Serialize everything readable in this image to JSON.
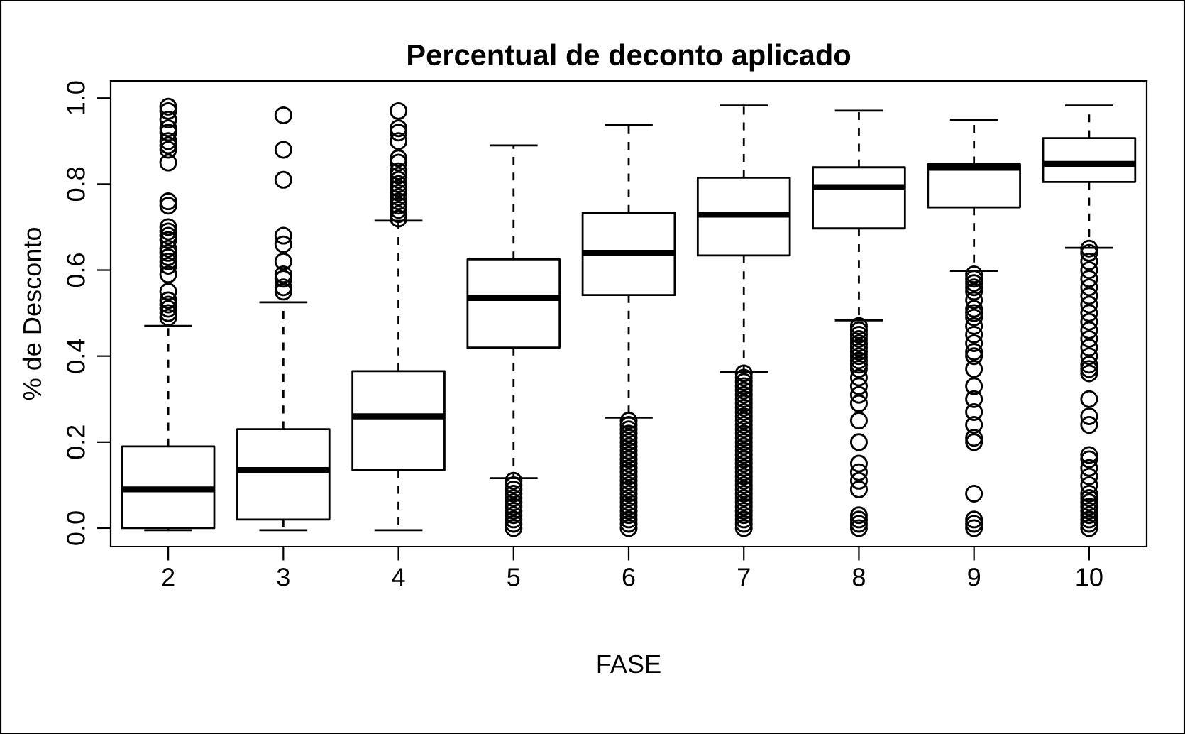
{
  "chart_data": {
    "type": "box",
    "title": "Percentual de deconto aplicado",
    "xlabel": "FASE",
    "ylabel": "% de Desconto",
    "categories": [
      "2",
      "3",
      "4",
      "5",
      "6",
      "7",
      "8",
      "9",
      "10"
    ],
    "ylim": [
      -0.043,
      1.04
    ],
    "yticks": [
      {
        "value": 0,
        "label": "0.0"
      },
      {
        "value": 0.2,
        "label": "0.2"
      },
      {
        "value": 0.4,
        "label": "0.4"
      },
      {
        "value": 0.6,
        "label": "0.6"
      },
      {
        "value": 0.8,
        "label": "0.8"
      },
      {
        "value": 1.0,
        "label": "1.0"
      }
    ],
    "grid": false,
    "legend": false,
    "boxes": [
      {
        "low": -0.005,
        "q1": 0.0,
        "median": 0.09,
        "q3": 0.19,
        "high": 0.47,
        "outliers": [
          0.49,
          0.5,
          0.51,
          0.52,
          0.53,
          0.55,
          0.59,
          0.61,
          0.62,
          0.63,
          0.64,
          0.65,
          0.67,
          0.68,
          0.69,
          0.7,
          0.75,
          0.76,
          0.85,
          0.88,
          0.89,
          0.9,
          0.92,
          0.93,
          0.95,
          0.97,
          0.98
        ]
      },
      {
        "low": -0.005,
        "q1": 0.02,
        "median": 0.135,
        "q3": 0.23,
        "high": 0.525,
        "outliers": [
          0.55,
          0.56,
          0.58,
          0.59,
          0.62,
          0.66,
          0.68,
          0.81,
          0.88,
          0.96
        ]
      },
      {
        "low": -0.005,
        "q1": 0.135,
        "median": 0.26,
        "q3": 0.365,
        "high": 0.715,
        "outliers": [
          0.72,
          0.73,
          0.74,
          0.75,
          0.76,
          0.77,
          0.78,
          0.79,
          0.8,
          0.81,
          0.82,
          0.83,
          0.85,
          0.86,
          0.9,
          0.92,
          0.93,
          0.97
        ]
      },
      {
        "low": 0.116,
        "q1": 0.42,
        "median": 0.535,
        "q3": 0.625,
        "high": 0.89,
        "outliers": [
          0.0,
          0.01,
          0.02,
          0.03,
          0.04,
          0.05,
          0.06,
          0.07,
          0.08,
          0.09,
          0.1,
          0.11
        ]
      },
      {
        "low": 0.257,
        "q1": 0.542,
        "median": 0.64,
        "q3": 0.733,
        "high": 0.938,
        "outliers": [
          0.0,
          0.01,
          0.02,
          0.03,
          0.04,
          0.05,
          0.06,
          0.07,
          0.08,
          0.09,
          0.1,
          0.11,
          0.12,
          0.13,
          0.14,
          0.15,
          0.16,
          0.17,
          0.18,
          0.19,
          0.2,
          0.21,
          0.22,
          0.23,
          0.24,
          0.25
        ]
      },
      {
        "low": 0.363,
        "q1": 0.634,
        "median": 0.729,
        "q3": 0.815,
        "high": 0.983,
        "outliers": [
          0.0,
          0.01,
          0.02,
          0.03,
          0.04,
          0.05,
          0.06,
          0.07,
          0.08,
          0.09,
          0.1,
          0.11,
          0.12,
          0.13,
          0.14,
          0.15,
          0.16,
          0.17,
          0.18,
          0.19,
          0.2,
          0.21,
          0.22,
          0.23,
          0.24,
          0.25,
          0.26,
          0.27,
          0.28,
          0.29,
          0.3,
          0.31,
          0.32,
          0.33,
          0.34,
          0.35,
          0.36
        ]
      },
      {
        "low": 0.483,
        "q1": 0.697,
        "median": 0.793,
        "q3": 0.839,
        "high": 0.971,
        "outliers": [
          0.0,
          0.01,
          0.02,
          0.03,
          0.09,
          0.11,
          0.13,
          0.15,
          0.2,
          0.25,
          0.29,
          0.31,
          0.33,
          0.35,
          0.37,
          0.38,
          0.39,
          0.4,
          0.41,
          0.42,
          0.43,
          0.44,
          0.45,
          0.46,
          0.47
        ]
      },
      {
        "low": 0.598,
        "q1": 0.746,
        "median": 0.838,
        "q3": 0.846,
        "high": 0.95,
        "outliers": [
          0.0,
          0.01,
          0.02,
          0.08,
          0.2,
          0.21,
          0.24,
          0.27,
          0.3,
          0.33,
          0.37,
          0.4,
          0.41,
          0.43,
          0.45,
          0.47,
          0.49,
          0.5,
          0.51,
          0.53,
          0.55,
          0.56,
          0.57,
          0.58,
          0.59
        ]
      },
      {
        "low": 0.652,
        "q1": 0.805,
        "median": 0.847,
        "q3": 0.907,
        "high": 0.983,
        "outliers": [
          0.0,
          0.01,
          0.02,
          0.03,
          0.04,
          0.05,
          0.06,
          0.07,
          0.08,
          0.1,
          0.12,
          0.14,
          0.16,
          0.17,
          0.24,
          0.26,
          0.3,
          0.36,
          0.37,
          0.38,
          0.4,
          0.42,
          0.44,
          0.46,
          0.48,
          0.5,
          0.52,
          0.54,
          0.56,
          0.58,
          0.6,
          0.62,
          0.64,
          0.65
        ]
      }
    ]
  }
}
